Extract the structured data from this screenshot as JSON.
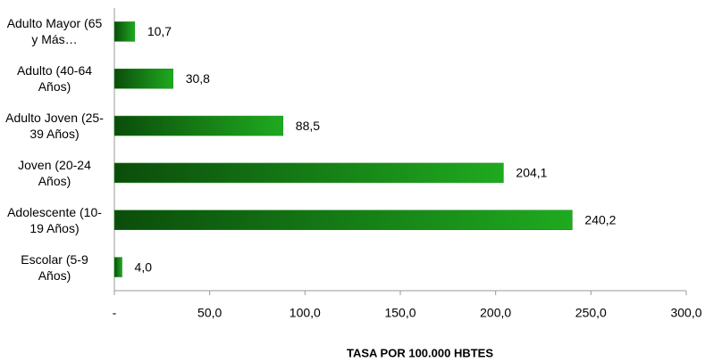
{
  "chart_data": {
    "type": "bar",
    "orientation": "horizontal",
    "xlabel": "TASA POR 100.000 HBTES",
    "categories": [
      "Adulto Mayor (65 y Más…",
      "Adulto (40-64 Años)",
      "Adulto Joven (25-39 Años)",
      "Joven (20-24 Años)",
      "Adolescente (10-19 Años)",
      "Escolar (5-9 Años)"
    ],
    "values": [
      10.7,
      30.8,
      88.5,
      204.1,
      240.2,
      4.0
    ],
    "value_labels": [
      "10,7",
      "30,8",
      "88,5",
      "204,1",
      "240,2",
      "4,0"
    ],
    "color": "#1a8a1a",
    "xlim": [
      0,
      300
    ],
    "xticks": [
      {
        "value": 0,
        "label": "-"
      },
      {
        "value": 50,
        "label": "50,0"
      },
      {
        "value": 100,
        "label": "100,0"
      },
      {
        "value": 150,
        "label": "150,0"
      },
      {
        "value": 200,
        "label": "200,0"
      },
      {
        "value": 250,
        "label": "250,0"
      },
      {
        "value": 300,
        "label": "300,0"
      }
    ],
    "grid": false
  }
}
